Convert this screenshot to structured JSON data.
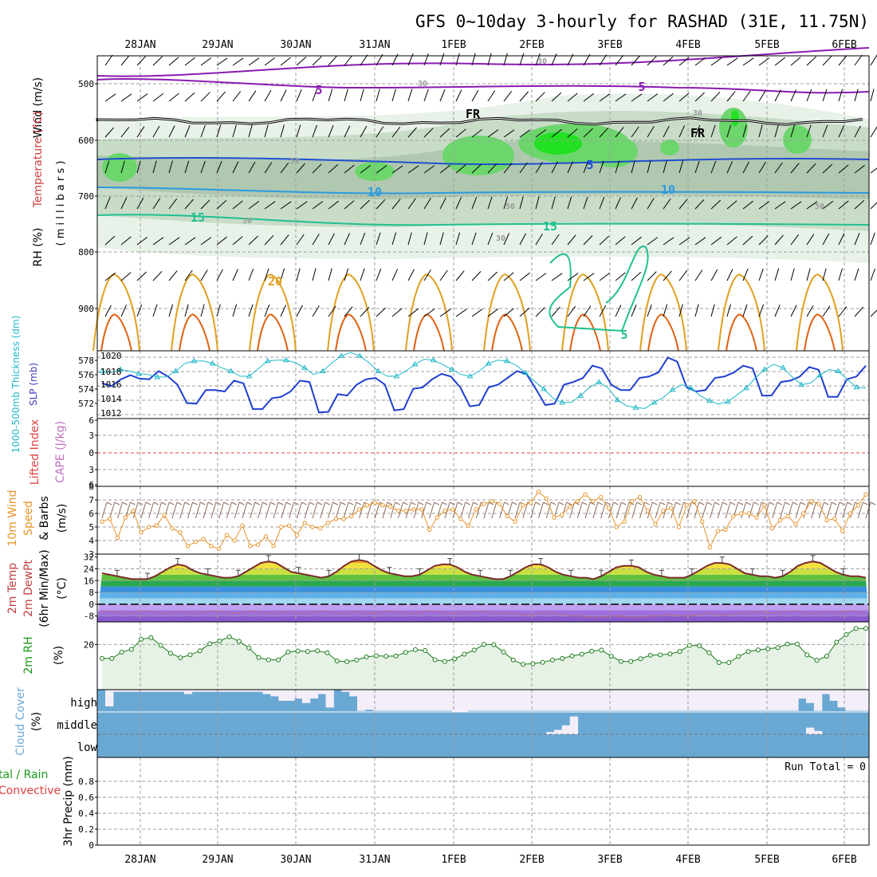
{
  "title": "GFS 0~10day 3-hourly for RASHAD (31E, 11.75N)",
  "dates": [
    "28JAN",
    "29JAN",
    "30JAN",
    "31JAN",
    "1FEB",
    "2FEB",
    "3FEB",
    "4FEB",
    "5FEB",
    "6FEB"
  ],
  "colors": {
    "frame": "#000000",
    "grid": "#9e9e9e",
    "slp": "#1f3fd0",
    "thickness": "#20b8c8",
    "wind": "#e8942a",
    "barb": "#8a6a5a",
    "t2m": "#7a2a2a",
    "dew": "#c06a6a",
    "rh": "#1a7a1a",
    "cloud": "#6aa8d4",
    "cloud_clear": "#f3eef8"
  },
  "panels": {
    "upper": {
      "label_wind": "Wind (m/s)",
      "label_temp": "Temperature (°C)",
      "label_rh": "RH (%)",
      "label_mb": "( m i l l i b a r s )",
      "yticks": [
        "500",
        "600",
        "700",
        "800",
        "900"
      ],
      "contour_labels": [
        "5",
        "5",
        "FR",
        "FR",
        "5",
        "10",
        "10",
        "15",
        "15",
        "20",
        "5",
        "30",
        "30",
        "30",
        "30",
        "30",
        "50",
        "50",
        "50"
      ]
    },
    "slp": {
      "label_thickness": "1000-500mb Thickness (dm)",
      "label_slp": "SLP (mb)",
      "yticks_left": [
        "578",
        "576",
        "574",
        "572"
      ],
      "yticks_right": [
        "1020",
        "1018",
        "1016",
        "1014",
        "1012"
      ]
    },
    "cape": {
      "label_li": "Lifted Index",
      "label_cape": "CAPE (J/kg)",
      "yticks": [
        "6",
        "3",
        "0",
        "3",
        "6"
      ]
    },
    "wind10": {
      "label_a": "10m Wind",
      "label_b": "Speed",
      "label_c": "& Barbs",
      "unit": "(m/s)",
      "yticks": [
        "8",
        "7",
        "6",
        "5",
        "4",
        "3"
      ]
    },
    "temp2m": {
      "label_a": "2m Temp",
      "label_b": "2m DewPt",
      "label_c": "(6hr Min/Max)",
      "unit": "(°C)",
      "yticks": [
        "32",
        "24",
        "16",
        "8",
        "0",
        "-8"
      ]
    },
    "rh2m": {
      "label_a": "2m RH",
      "unit": "(%)",
      "yticks": [
        "20"
      ]
    },
    "cloud": {
      "label_a": "Cloud Cover",
      "unit": "(%)",
      "levels": [
        "high",
        "middle",
        "low"
      ]
    },
    "precip": {
      "label_a": "tal / Rain",
      "label_b": "Convective",
      "label_c": "3hr Precip (mm)",
      "run_total": "Run Total = 0",
      "yticks": [
        "0.8",
        "0.6",
        "0.4",
        "0.2",
        "0"
      ]
    }
  },
  "chart_data": [
    {
      "type": "line",
      "title": "SLP (mb)",
      "x_unit": "3-hourly steps from 27JAN 12Z",
      "ylim": [
        1011,
        1021
      ],
      "series": [
        {
          "name": "SLP (mb)",
          "values": [
            1016.2,
            1015.8,
            1016.8,
            1017.4,
            1016.9,
            1016.8,
            1018.0,
            1017.2,
            1016.0,
            1013.3,
            1013.2,
            1015.2,
            1015.2,
            1015.0,
            1016.6,
            1016.2,
            1012.4,
            1012.4,
            1014.0,
            1014.2,
            1015.0,
            1016.6,
            1016.4,
            1011.9,
            1012.0,
            1014.6,
            1014.4,
            1016.0,
            1016.8,
            1017.0,
            1016.0,
            1012.2,
            1012.4,
            1015.4,
            1015.6,
            1016.8,
            1017.6,
            1017.2,
            1015.6,
            1012.8,
            1013.0,
            1015.6,
            1016.0,
            1017.0,
            1018.0,
            1017.6,
            1015.4,
            1013.0,
            1013.2,
            1016.0,
            1016.4,
            1017.0,
            1018.8,
            1018.4,
            1016.0,
            1015.2,
            1015.2,
            1017.0,
            1017.2,
            1017.8,
            1020.0,
            1019.4,
            1015.6,
            1015.0,
            1015.2,
            1017.0,
            1017.2,
            1017.8,
            1018.8,
            1018.4,
            1014.4,
            1014.4,
            1016.4,
            1016.6,
            1017.2,
            1018.6,
            1018.2,
            1014.2,
            1014.2,
            1016.8,
            1017.2,
            1018.8
          ]
        }
      ]
    },
    {
      "type": "line",
      "title": "1000-500mb Thickness (dm)",
      "ylim": [
        571,
        579
      ],
      "series": [
        {
          "name": "Thickness (dm)",
          "values": [
            576.6,
            576.4,
            576.8,
            576.6,
            576.3,
            576.2,
            575.9,
            575.9,
            576.6,
            577.5,
            577.8,
            577.8,
            577.5,
            577.0,
            576.6,
            576.0,
            576.0,
            576.9,
            577.8,
            577.9,
            577.9,
            577.6,
            577.0,
            576.2,
            576.6,
            577.6,
            578.4,
            578.8,
            578.4,
            577.6,
            576.6,
            576.0,
            576.0,
            576.6,
            577.4,
            578.0,
            577.9,
            577.4,
            576.8,
            576.2,
            576.0,
            576.6,
            577.5,
            577.9,
            577.8,
            577.3,
            576.4,
            575.4,
            574.5,
            573.4,
            572.9,
            572.9,
            573.7,
            574.7,
            575.3,
            574.6,
            573.2,
            572.5,
            572.3,
            572.2,
            572.9,
            573.5,
            574.4,
            575.0,
            574.6,
            573.7,
            573.1,
            572.7,
            573.0,
            573.8,
            574.6,
            575.8,
            576.8,
            577.4,
            577.0,
            575.9,
            575.0,
            575.2,
            576.1,
            576.8,
            576.6,
            575.6,
            574.7,
            574.6
          ]
        }
      ]
    },
    {
      "type": "line",
      "title": "10m Wind Speed (m/s)",
      "ylim": [
        3,
        8
      ],
      "series": [
        {
          "name": "10m Wind Speed",
          "values": [
            5.4,
            5.6,
            4.2,
            5.7,
            6.2,
            4.6,
            5.0,
            5.1,
            5.9,
            4.9,
            4.6,
            3.6,
            3.9,
            4.1,
            3.6,
            3.4,
            4.4,
            4.0,
            5.1,
            3.6,
            3.7,
            4.3,
            3.6,
            5.0,
            5.1,
            4.4,
            5.3,
            5.0,
            4.9,
            5.3,
            5.6,
            5.6,
            5.8,
            6.3,
            6.6,
            6.8,
            6.6,
            6.5,
            6.2,
            6.2,
            6.3,
            6.3,
            4.8,
            5.7,
            6.2,
            6.3,
            5.6,
            5.1,
            6.3,
            6.7,
            6.9,
            6.7,
            5.8,
            5.4,
            6.6,
            6.8,
            7.6,
            7.1,
            5.7,
            5.9,
            6.5,
            6.9,
            7.4,
            6.9,
            7.2,
            6.4,
            5.0,
            5.4,
            6.9,
            7.2,
            6.2,
            5.2,
            6.2,
            6.4,
            5.0,
            6.6,
            6.9,
            5.4,
            3.5,
            4.7,
            4.8,
            5.8,
            6.0,
            6.0,
            5.7,
            6.6,
            4.9,
            5.5,
            5.8,
            5.2,
            6.0,
            6.9,
            6.7,
            5.5,
            5.6,
            4.7,
            6.0,
            6.6,
            7.4
          ]
        }
      ]
    },
    {
      "type": "area",
      "title": "2m Temp (°C)",
      "ylim": [
        -12,
        34
      ],
      "series": [
        {
          "name": "2m Temp",
          "values": [
            21,
            20,
            19,
            18,
            17,
            17,
            17,
            19,
            22,
            25,
            27,
            26,
            23,
            21,
            20,
            19,
            18,
            18,
            19,
            22,
            25,
            28,
            29,
            28,
            25,
            22,
            21,
            20,
            19,
            18,
            19,
            22,
            26,
            29,
            30,
            29,
            26,
            23,
            21,
            20,
            19,
            19,
            20,
            23,
            26,
            27,
            27,
            25,
            22,
            20,
            19,
            18,
            17,
            17,
            19,
            22,
            25,
            27,
            27,
            25,
            22,
            20,
            19,
            18,
            18,
            17,
            19,
            22,
            25,
            26,
            26,
            25,
            22,
            20,
            19,
            18,
            18,
            18,
            20,
            23,
            26,
            28,
            28,
            27,
            24,
            21,
            20,
            19,
            19,
            18,
            19,
            22,
            26,
            28,
            29,
            28,
            25,
            22,
            20,
            19,
            19,
            18
          ]
        },
        {
          "name": "2m DewPt",
          "values": [
            -5,
            -5,
            -6,
            -6,
            -5,
            -5,
            -6,
            -6,
            -5,
            -6,
            -6,
            -5,
            -5,
            -6,
            -6,
            -5,
            -5,
            -6,
            -6,
            -5,
            -6,
            -6,
            -5,
            -5,
            -6,
            -6,
            -5,
            -6,
            -6,
            -5,
            -5,
            -6,
            -6,
            -5,
            -5,
            -6,
            -6,
            -6,
            -5,
            -5,
            -6,
            -6,
            -6,
            -7,
            -7,
            -6,
            -6,
            -7,
            -8,
            -8,
            -9,
            -9,
            -8,
            -8,
            -9,
            -9,
            -8,
            -8,
            -7,
            -8,
            -8,
            -7,
            -6,
            -7,
            -7,
            -6,
            -6,
            -5,
            -6,
            -6,
            -5,
            -5,
            -6,
            -6,
            -5,
            -6,
            -5,
            -5,
            -6
          ]
        }
      ]
    },
    {
      "type": "line",
      "title": "2m RH (%)",
      "ylim": [
        0,
        30
      ],
      "series": [
        {
          "name": "2m RH",
          "values": [
            13.8,
            13.8,
            16.6,
            17.8,
            22.3,
            23.0,
            19.6,
            16.1,
            14.1,
            15.4,
            17.2,
            20.3,
            21.5,
            23.4,
            21.4,
            18.5,
            14.2,
            13.2,
            13.2,
            16.7,
            17.1,
            16.9,
            17.2,
            16.3,
            12.7,
            12.4,
            13.1,
            14.5,
            15.0,
            14.8,
            14.9,
            16.5,
            17.7,
            17.3,
            13.2,
            12.5,
            13.6,
            15.7,
            17.5,
            20.0,
            19.9,
            16.7,
            13.1,
            11.2,
            11.5,
            12.1,
            13.1,
            13.8,
            14.9,
            15.7,
            17.0,
            17.5,
            14.8,
            12.5,
            12.5,
            13.7,
            15.2,
            15.4,
            15.8,
            16.9,
            19.6,
            19.4,
            16.3,
            12.0,
            12.0,
            14.7,
            16.9,
            17.6,
            18.1,
            18.6,
            20.2,
            20.2,
            15.4,
            13.0,
            14.8,
            21.0,
            24.4,
            27.1,
            27.1
          ]
        }
      ]
    },
    {
      "type": "bar",
      "title": "Cloud Cover (%)",
      "ylim": [
        0,
        100
      ],
      "series": [
        {
          "name": "high",
          "values": [
            25,
            90,
            90,
            90,
            90,
            90,
            90,
            90,
            90,
            90,
            80,
            90,
            90,
            90,
            90,
            90,
            90,
            90,
            90,
            90,
            80,
            70,
            50,
            50,
            60,
            40,
            60,
            80,
            20,
            100,
            90,
            70,
            5,
            10,
            5,
            5,
            5,
            5,
            5,
            5,
            5,
            5,
            5,
            5,
            0,
            0,
            5,
            5,
            5,
            5,
            5,
            5,
            5,
            5,
            5,
            5,
            5,
            5,
            5,
            5,
            5,
            5,
            5,
            5,
            5,
            5,
            5,
            5,
            5,
            5,
            5,
            5,
            5,
            5,
            5,
            5,
            5,
            5,
            5,
            5,
            5,
            5,
            5,
            5,
            5,
            5,
            5,
            5,
            60,
            40,
            5,
            80,
            50,
            20,
            5,
            5,
            5
          ]
        },
        {
          "name": "middle",
          "values": [
            0,
            0,
            0,
            0,
            0,
            0,
            0,
            0,
            0,
            0,
            0,
            0,
            0,
            0,
            0,
            0,
            0,
            0,
            0,
            0,
            0,
            0,
            0,
            0,
            0,
            0,
            0,
            0,
            0,
            0,
            0,
            0,
            0,
            0,
            0,
            0,
            0,
            0,
            0,
            0,
            0,
            0,
            0,
            0,
            0,
            0,
            0,
            0,
            0,
            0,
            0,
            0,
            0,
            0,
            0,
            0,
            10,
            20,
            40,
            80,
            0,
            0,
            0,
            0,
            0,
            0,
            0,
            0,
            0,
            0,
            0,
            0,
            0,
            0,
            0,
            0,
            0,
            0,
            0,
            0,
            0,
            0,
            0,
            0,
            0,
            0,
            0,
            0,
            0,
            30,
            15,
            0,
            0,
            0,
            0,
            0,
            0
          ]
        },
        {
          "name": "low",
          "values": [
            0,
            0,
            0,
            0,
            0,
            0,
            0,
            0,
            0,
            0,
            0,
            0,
            0,
            0,
            0,
            0,
            0,
            0,
            0,
            0,
            0,
            0,
            0,
            0,
            0,
            0,
            0,
            0,
            0,
            0,
            0,
            0,
            0,
            0,
            0,
            0,
            0,
            0,
            0,
            0,
            0,
            0,
            0,
            0,
            0,
            0,
            0,
            0,
            0,
            0,
            0,
            0,
            0,
            0,
            0,
            0,
            0,
            0,
            0,
            0,
            0,
            0,
            0,
            0,
            0,
            0,
            0,
            0,
            0,
            0,
            0,
            0,
            0,
            0,
            0,
            0,
            0,
            0,
            0,
            0,
            0,
            0,
            0,
            0,
            0,
            0,
            0,
            0,
            0,
            0,
            0,
            0,
            0,
            0,
            0,
            0,
            0
          ]
        }
      ]
    },
    {
      "type": "bar",
      "title": "3hr Precip (mm)",
      "ylim": [
        0,
        1
      ],
      "series": [
        {
          "name": "Total",
          "values": [
            0,
            0,
            0,
            0,
            0,
            0,
            0,
            0,
            0,
            0
          ]
        }
      ]
    }
  ]
}
